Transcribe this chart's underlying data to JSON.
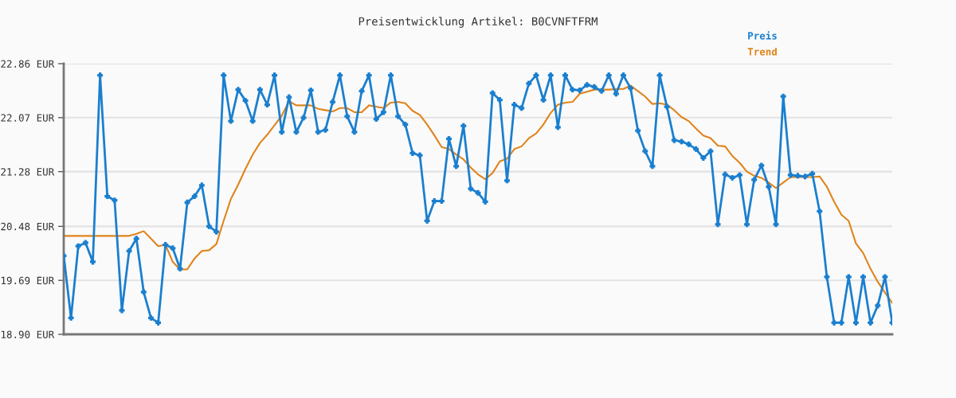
{
  "chart_data": {
    "type": "line",
    "title": "Preisentwicklung Artikel: B0CVNFTFRM",
    "categories": [
      null,
      null,
      null,
      null,
      null,
      null,
      null,
      null,
      null,
      null,
      null,
      null,
      null,
      null,
      null,
      null,
      null,
      null,
      null,
      null,
      null,
      null,
      null,
      null,
      null,
      null,
      null,
      null,
      null,
      null,
      null,
      null,
      null,
      null,
      null,
      null,
      null,
      null,
      null,
      null,
      null,
      null,
      null,
      null,
      null,
      null,
      null,
      null,
      null,
      null,
      null,
      null,
      null,
      null,
      null,
      null,
      null,
      null,
      null,
      null,
      null,
      null,
      null,
      null,
      null,
      null,
      null,
      null,
      null,
      null,
      null,
      null,
      null,
      null,
      null,
      null,
      null,
      null,
      null,
      null,
      null,
      null,
      null,
      null,
      null,
      null,
      null,
      null,
      null,
      null,
      null,
      null,
      null,
      null,
      null,
      null,
      null,
      null,
      null,
      null,
      null,
      null,
      null,
      null,
      null,
      null,
      null,
      null,
      null,
      null,
      null,
      null,
      null,
      null,
      null
    ],
    "series": [
      {
        "name": "Preis",
        "color": "#1a7fcf",
        "marker": "cross",
        "values": [
          20.05,
          19.14,
          20.19,
          20.24,
          19.96,
          22.69,
          20.92,
          20.86,
          19.25,
          20.12,
          20.3,
          19.52,
          19.14,
          19.07,
          20.21,
          20.16,
          19.86,
          20.83,
          20.92,
          21.08,
          20.48,
          20.4,
          22.69,
          22.02,
          22.48,
          22.32,
          22.02,
          22.48,
          22.26,
          22.69,
          21.86,
          22.37,
          21.86,
          22.07,
          22.47,
          21.86,
          21.89,
          22.3,
          22.69,
          22.09,
          21.86,
          22.46,
          22.69,
          22.05,
          22.15,
          22.69,
          22.09,
          21.97,
          21.55,
          21.52,
          20.56,
          20.85,
          20.85,
          21.76,
          21.36,
          21.95,
          21.03,
          20.97,
          20.84,
          22.43,
          22.33,
          21.15,
          22.26,
          22.21,
          22.57,
          22.69,
          22.33,
          22.69,
          21.93,
          22.69,
          22.48,
          22.47,
          22.55,
          22.52,
          22.46,
          22.69,
          22.42,
          22.69,
          22.5,
          21.88,
          21.58,
          21.36,
          22.69,
          22.23,
          21.74,
          21.72,
          21.68,
          21.61,
          21.48,
          21.58,
          20.51,
          21.24,
          21.19,
          21.23,
          20.51,
          21.16,
          21.37,
          21.06,
          20.51,
          22.38,
          21.23,
          21.22,
          21.21,
          21.25,
          20.7,
          19.74,
          19.07,
          19.07,
          19.74,
          19.07,
          19.74,
          19.07,
          19.32,
          19.74,
          19.07
        ]
      },
      {
        "name": "Trend",
        "color": "#e0841a",
        "values": [
          20.34,
          20.34,
          20.34,
          20.34,
          20.34,
          20.34,
          20.34,
          20.34,
          20.34,
          20.34,
          20.37,
          20.41,
          20.3,
          20.19,
          20.21,
          19.96,
          19.85,
          19.85,
          20.01,
          20.12,
          20.13,
          20.22,
          20.56,
          20.88,
          21.09,
          21.32,
          21.53,
          21.7,
          21.82,
          21.96,
          22.1,
          22.31,
          22.25,
          22.25,
          22.25,
          22.2,
          22.18,
          22.16,
          22.21,
          22.21,
          22.15,
          22.15,
          22.25,
          22.23,
          22.21,
          22.29,
          22.3,
          22.28,
          22.17,
          22.11,
          21.97,
          21.81,
          21.64,
          21.61,
          21.53,
          21.46,
          21.34,
          21.24,
          21.17,
          21.26,
          21.43,
          21.47,
          21.61,
          21.65,
          21.77,
          21.84,
          21.97,
          22.14,
          22.26,
          22.29,
          22.3,
          22.42,
          22.45,
          22.48,
          22.48,
          22.48,
          22.49,
          22.49,
          22.54,
          22.46,
          22.38,
          22.27,
          22.28,
          22.26,
          22.18,
          22.08,
          22.02,
          21.91,
          21.81,
          21.77,
          21.66,
          21.65,
          21.51,
          21.41,
          21.28,
          21.22,
          21.19,
          21.12,
          21.04,
          21.12,
          21.2,
          21.2,
          21.2,
          21.2,
          21.21,
          21.06,
          20.84,
          20.65,
          20.56,
          20.23,
          20.09,
          19.86,
          19.67,
          19.51,
          19.36
        ]
      }
    ],
    "ylim": [
      18.9,
      22.86
    ],
    "yticks": [
      {
        "value": 18.9,
        "label": "18.90 EUR"
      },
      {
        "value": 19.69,
        "label": "19.69 EUR"
      },
      {
        "value": 20.48,
        "label": "20.48 EUR"
      },
      {
        "value": 21.28,
        "label": "21.28 EUR"
      },
      {
        "value": 22.07,
        "label": "22.07 EUR"
      },
      {
        "value": 22.86,
        "label": "22.86 EUR"
      }
    ],
    "grid": "y",
    "legend": "top right",
    "tick_labels": "y"
  }
}
